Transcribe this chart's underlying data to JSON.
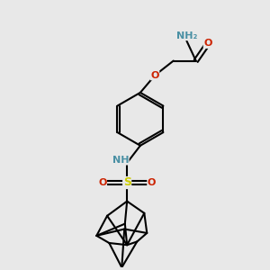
{
  "background_color": "#e8e8e8",
  "atom_colors": {
    "C": "#000000",
    "N": "#4a90a4",
    "O": "#cc2200",
    "S": "#cccc00",
    "H": "#4a90a4"
  },
  "bond_color": "#000000",
  "figsize": [
    3.0,
    3.0
  ],
  "dpi": 100,
  "xlim": [
    0,
    10
  ],
  "ylim": [
    0,
    10
  ]
}
